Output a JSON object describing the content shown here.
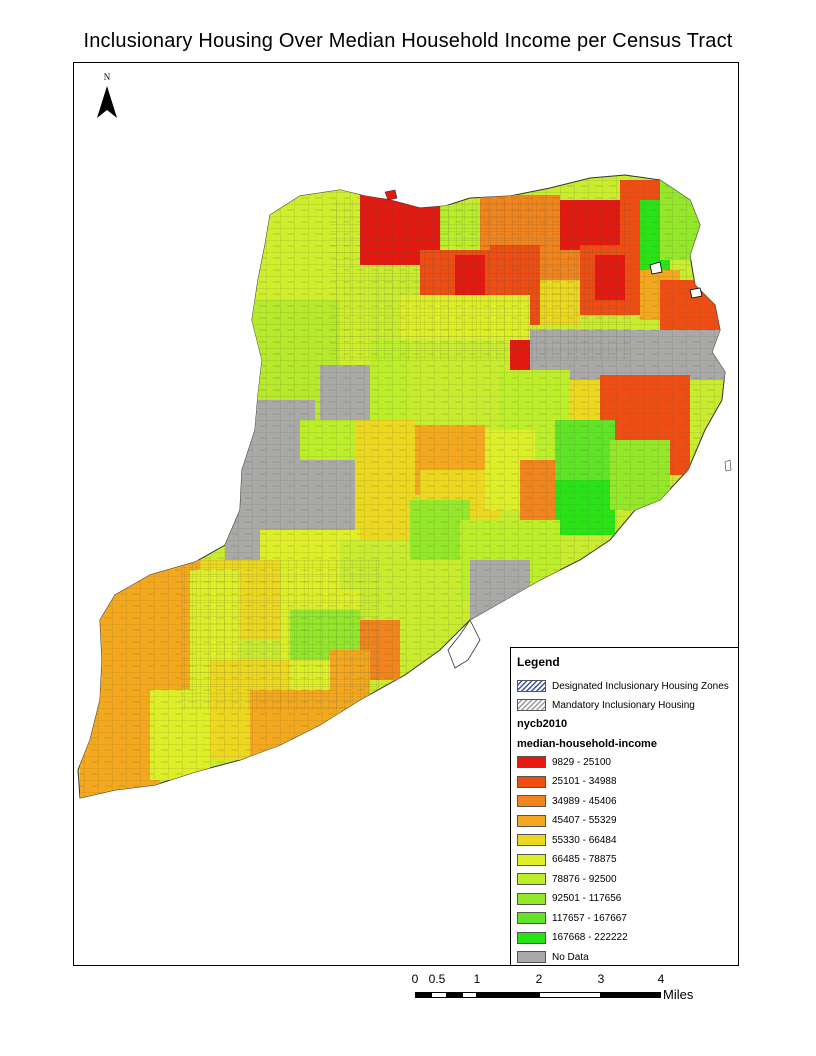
{
  "title": "Inclusionary Housing Over Median Household Income per Census Tract",
  "north_arrow": {
    "label": "N"
  },
  "legend": {
    "title": "Legend",
    "overlays": [
      {
        "label": "Designated Inclusionary Housing Zones",
        "pattern": "blue-hatch"
      },
      {
        "label": "Mandatory Inclusionary Housing",
        "pattern": "gray-hatch"
      }
    ],
    "layer": "nycb2010",
    "field": "median-household-income",
    "classes": [
      {
        "label": "9829 - 25100",
        "color": "#e8170f"
      },
      {
        "label": "25101 - 34988",
        "color": "#f04d12"
      },
      {
        "label": "34989 - 45406",
        "color": "#f1841c"
      },
      {
        "label": "45407 - 55329",
        "color": "#f4a81d"
      },
      {
        "label": "55330 - 66484",
        "color": "#ecd81f"
      },
      {
        "label": "66485 - 78875",
        "color": "#dcef27"
      },
      {
        "label": "78876 - 92500",
        "color": "#bdee2a"
      },
      {
        "label": "92501 - 117656",
        "color": "#93e82a"
      },
      {
        "label": "117657 - 167667",
        "color": "#5fe428"
      },
      {
        "label": "167668 - 222222",
        "color": "#28e417"
      },
      {
        "label": "No Data",
        "color": "#a9a9a9"
      }
    ]
  },
  "scale_bar": {
    "ticks": [
      "0",
      "0.5",
      "1",
      "2",
      "3",
      "4"
    ],
    "unit": "Miles"
  }
}
